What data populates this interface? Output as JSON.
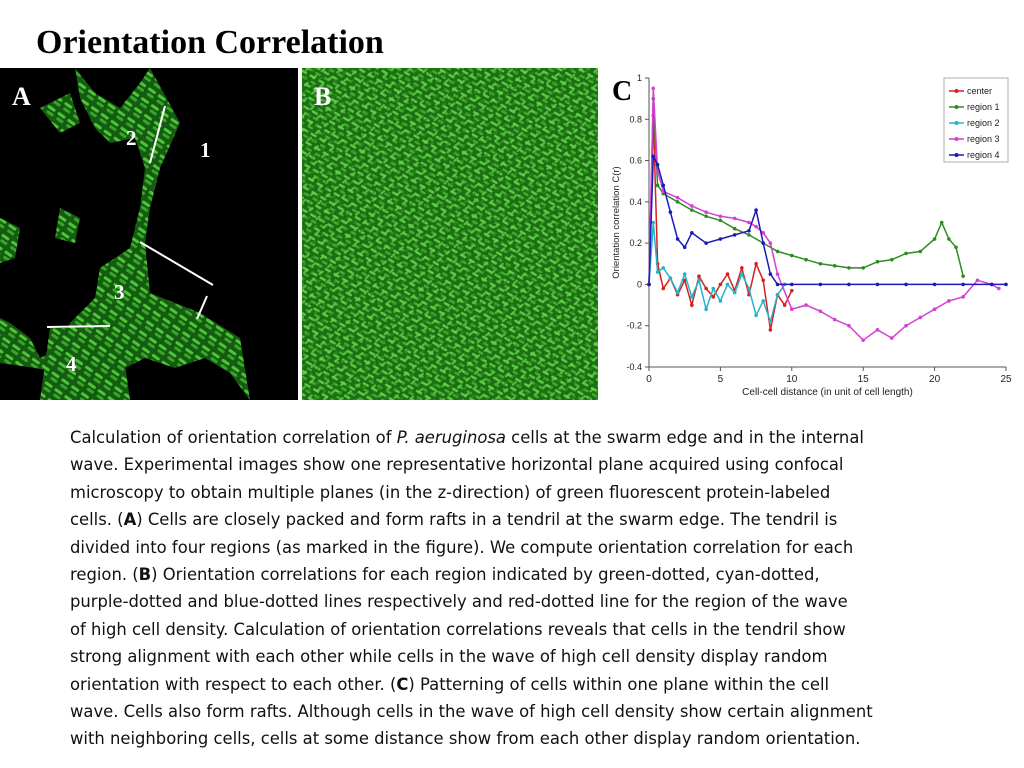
{
  "title": "Orientation Correlation",
  "panels": {
    "a": {
      "letter": "A",
      "regions": [
        "1",
        "2",
        "3",
        "4"
      ]
    },
    "b": {
      "letter": "B"
    },
    "c": {
      "letter": "C"
    }
  },
  "colors": {
    "background": "#ffffff",
    "cell_green": "#3fae2a",
    "center": "#d62020",
    "region1": "#2e8b22",
    "region2": "#22b5c8",
    "region3": "#d43fd4",
    "region4": "#1a1ab8"
  },
  "chart_data": {
    "type": "line",
    "title": "",
    "xlabel": "Cell-cell distance (in unit of cell length)",
    "ylabel": "Orientation correlation C(r)",
    "xlim": [
      0,
      25
    ],
    "ylim": [
      -0.4,
      1
    ],
    "xticks": [
      "0",
      "5",
      "10",
      "15",
      "20",
      "25"
    ],
    "yticks": [
      "-0.4",
      "-0.2",
      "0",
      "0.2",
      "0.4",
      "0.6",
      "0.8",
      "1"
    ],
    "legend_position": "top-right",
    "series": [
      {
        "name": "center",
        "color": "#d62020",
        "x": [
          0,
          0.3,
          0.6,
          1,
          1.5,
          2,
          2.5,
          3,
          3.5,
          4,
          4.5,
          5,
          5.5,
          6,
          6.5,
          7,
          7.5,
          8,
          8.5,
          9,
          9.5,
          10
        ],
        "y": [
          0,
          0.82,
          0.1,
          -0.02,
          0.03,
          -0.05,
          0.02,
          -0.1,
          0.04,
          -0.02,
          -0.06,
          0.0,
          0.05,
          -0.03,
          0.08,
          -0.05,
          0.1,
          0.02,
          -0.22,
          -0.05,
          -0.1,
          -0.03
        ]
      },
      {
        "name": "region 1",
        "color": "#2e8b22",
        "x": [
          0,
          0.3,
          0.6,
          1,
          2,
          3,
          4,
          5,
          6,
          7,
          8,
          9,
          10,
          11,
          12,
          13,
          14,
          15,
          16,
          17,
          18,
          19,
          20,
          20.5,
          21,
          21.5,
          22
        ],
        "y": [
          0,
          0.9,
          0.48,
          0.44,
          0.4,
          0.36,
          0.33,
          0.31,
          0.27,
          0.24,
          0.2,
          0.16,
          0.14,
          0.12,
          0.1,
          0.09,
          0.08,
          0.08,
          0.11,
          0.12,
          0.15,
          0.16,
          0.22,
          0.3,
          0.22,
          0.18,
          0.04
        ]
      },
      {
        "name": "region 2",
        "color": "#22b5c8",
        "x": [
          0,
          0.3,
          0.6,
          1,
          1.5,
          2,
          2.5,
          3,
          3.5,
          4,
          4.5,
          5,
          5.5,
          6,
          6.5,
          7,
          7.5,
          8,
          8.5,
          9,
          9.5
        ],
        "y": [
          0,
          0.3,
          0.06,
          0.08,
          0.03,
          -0.04,
          0.05,
          -0.06,
          0.02,
          -0.12,
          -0.02,
          -0.08,
          0.0,
          -0.04,
          0.05,
          -0.02,
          -0.15,
          -0.08,
          -0.18,
          -0.05,
          0.0
        ]
      },
      {
        "name": "region 3",
        "color": "#d43fd4",
        "x": [
          0,
          0.3,
          0.6,
          1,
          2,
          3,
          4,
          5,
          6,
          7,
          7.5,
          8,
          8.5,
          9,
          10,
          11,
          12,
          13,
          14,
          15,
          16,
          17,
          18,
          19,
          20,
          21,
          22,
          23,
          24,
          24.5
        ],
        "y": [
          0,
          0.95,
          0.55,
          0.45,
          0.42,
          0.38,
          0.35,
          0.33,
          0.32,
          0.3,
          0.28,
          0.25,
          0.2,
          0.05,
          -0.12,
          -0.1,
          -0.13,
          -0.17,
          -0.2,
          -0.27,
          -0.22,
          -0.26,
          -0.2,
          -0.16,
          -0.12,
          -0.08,
          -0.06,
          0.02,
          0.0,
          -0.02
        ]
      },
      {
        "name": "region 4",
        "color": "#1a1ab8",
        "x": [
          0,
          0.3,
          0.6,
          1,
          1.5,
          2,
          2.5,
          3,
          4,
          5,
          6,
          7,
          7.5,
          8,
          8.5,
          9,
          10,
          12,
          14,
          16,
          18,
          20,
          22,
          24,
          25
        ],
        "y": [
          0,
          0.62,
          0.58,
          0.48,
          0.35,
          0.22,
          0.18,
          0.25,
          0.2,
          0.22,
          0.24,
          0.26,
          0.36,
          0.2,
          0.05,
          0.0,
          0.0,
          0.0,
          0.0,
          0.0,
          0.0,
          0.0,
          0.0,
          0.0,
          0.0
        ]
      }
    ]
  },
  "caption": {
    "lines": [
      [
        {
          "t": "Calculation of orientation correlation of "
        },
        {
          "t": "P. aeruginosa",
          "i": true
        },
        {
          "t": " cells at the swarm edge and in the internal"
        }
      ],
      [
        {
          "t": "wave. Experimental images show one representative horizontal plane acquired using confocal"
        }
      ],
      [
        {
          "t": "microscopy to obtain multiple planes (in the z-direction) of green fluorescent protein-labeled"
        }
      ],
      [
        {
          "t": "cells. ("
        },
        {
          "t": "A",
          "b": true
        },
        {
          "t": ") Cells are closely packed and form rafts in a tendril at the swarm edge. The tendril is"
        }
      ],
      [
        {
          "t": "divided into four regions (as marked in the figure). We compute orientation correlation for each"
        }
      ],
      [
        {
          "t": "region. ("
        },
        {
          "t": "B",
          "b": true
        },
        {
          "t": ") Orientation correlations for each region indicated by green-dotted, cyan-dotted,"
        }
      ],
      [
        {
          "t": "purple-dotted and blue-dotted lines respectively and red-dotted line for the region of the wave"
        }
      ],
      [
        {
          "t": "of high cell density. Calculation of orientation correlations reveals that cells in the tendril show"
        }
      ],
      [
        {
          "t": "strong alignment with each other while cells in the wave of high cell density display random"
        }
      ],
      [
        {
          "t": "orientation with respect to each other. ("
        },
        {
          "t": "C",
          "b": true
        },
        {
          "t": ") Patterning of cells within one plane within the cell"
        }
      ],
      [
        {
          "t": "wave. Cells also form rafts. Although cells in the wave of high cell density show certain alignment"
        }
      ],
      [
        {
          "t": "with neighboring cells, cells at some distance show from each other display random orientation."
        }
      ]
    ]
  }
}
